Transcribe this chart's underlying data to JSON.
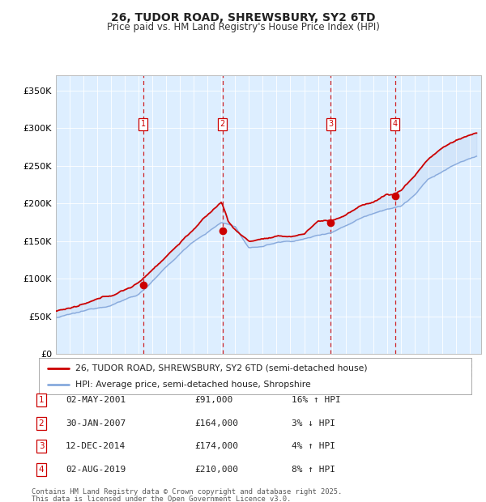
{
  "title_line1": "26, TUDOR ROAD, SHREWSBURY, SY2 6TD",
  "title_line2": "Price paid vs. HM Land Registry's House Price Index (HPI)",
  "ylim": [
    0,
    370000
  ],
  "yticks": [
    0,
    50000,
    100000,
    150000,
    200000,
    250000,
    300000,
    350000
  ],
  "ytick_labels": [
    "£0",
    "£50K",
    "£100K",
    "£150K",
    "£200K",
    "£250K",
    "£300K",
    "£350K"
  ],
  "bg_color": "#ddeeff",
  "grid_color": "#ffffff",
  "red_line_color": "#cc0000",
  "blue_line_color": "#88aadd",
  "sale_dates": [
    "2001-05-02",
    "2007-01-30",
    "2014-12-12",
    "2019-08-02"
  ],
  "sale_years": [
    2001.33,
    2007.08,
    2014.92,
    2019.58
  ],
  "sale_prices": [
    91000,
    164000,
    174000,
    210000
  ],
  "sale_labels": [
    "1",
    "2",
    "3",
    "4"
  ],
  "sale_pct": [
    "16% ↑ HPI",
    "3% ↓ HPI",
    "4% ↑ HPI",
    "8% ↑ HPI"
  ],
  "sale_dates_str": [
    "02-MAY-2001",
    "30-JAN-2007",
    "12-DEC-2014",
    "02-AUG-2019"
  ],
  "sale_prices_str": [
    "£91,000",
    "£164,000",
    "£174,000",
    "£210,000"
  ],
  "legend_label_red": "26, TUDOR ROAD, SHREWSBURY, SY2 6TD (semi-detached house)",
  "legend_label_blue": "HPI: Average price, semi-detached house, Shropshire",
  "footnote_line1": "Contains HM Land Registry data © Crown copyright and database right 2025.",
  "footnote_line2": "This data is licensed under the Open Government Licence v3.0.",
  "xstart": 1995.0,
  "xend": 2025.83,
  "key_years_blue": [
    1995,
    1997,
    1999,
    2001,
    2003,
    2005,
    2007,
    2008,
    2009,
    2010,
    2011,
    2012,
    2013,
    2014,
    2015,
    2016,
    2017,
    2018,
    2019,
    2020,
    2021,
    2022,
    2023,
    2024,
    2025.5
  ],
  "key_vals_blue": [
    48000,
    55000,
    65000,
    80000,
    115000,
    150000,
    175000,
    170000,
    140000,
    143000,
    148000,
    150000,
    153000,
    158000,
    163000,
    172000,
    182000,
    190000,
    197000,
    200000,
    215000,
    235000,
    245000,
    255000,
    265000
  ],
  "key_years_red": [
    1995,
    1997,
    1999,
    2001,
    2003,
    2005,
    2007,
    2007.5,
    2008,
    2009,
    2010,
    2011,
    2012,
    2013,
    2014,
    2015,
    2016,
    2017,
    2018,
    2019,
    2019.5,
    2020,
    2021,
    2022,
    2023,
    2024,
    2025.5
  ],
  "key_vals_red": [
    57000,
    64000,
    74000,
    91000,
    128000,
    165000,
    200000,
    175000,
    163000,
    148000,
    152000,
    153000,
    153000,
    157000,
    174000,
    175000,
    183000,
    193000,
    200000,
    210000,
    210000,
    215000,
    235000,
    258000,
    272000,
    282000,
    292000
  ]
}
